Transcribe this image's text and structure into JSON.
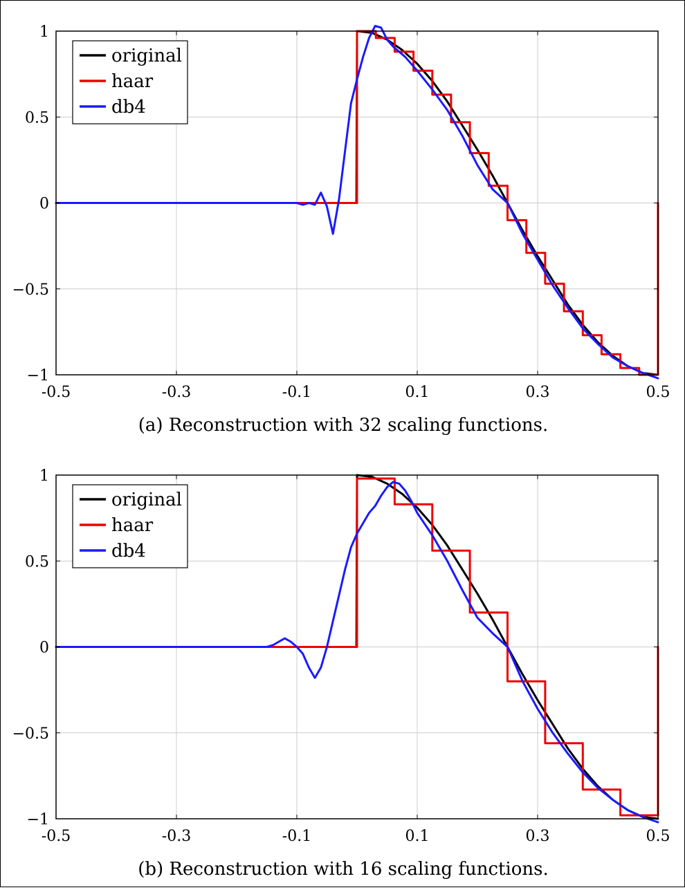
{
  "colors": {
    "original": "#000000",
    "haar": "#ee0000",
    "db4": "#1a1aff",
    "grid": "#cccccc"
  },
  "chart_data": [
    {
      "type": "line",
      "caption": "(a) Reconstruction with 32 scaling functions.",
      "xlim": [
        -0.5,
        0.5
      ],
      "ylim": [
        -1,
        1
      ],
      "grid": true,
      "legend_position": "top-left",
      "x_ticks": [
        -0.5,
        -0.3,
        -0.1,
        0.1,
        0.3,
        0.5
      ],
      "x_tick_labels": [
        "-0.5",
        "-0.3",
        "-0.1",
        "0.1",
        "0.3",
        "0.5"
      ],
      "y_ticks": [
        -1,
        -0.5,
        0,
        0.5,
        1
      ],
      "y_tick_labels": [
        "−1",
        "−0.5",
        "0",
        "0.5",
        "1"
      ],
      "series": [
        {
          "name": "original",
          "x": [
            -0.5,
            -0.4,
            -0.3,
            -0.2,
            -0.1,
            -0.001,
            0.0,
            0.025,
            0.05,
            0.075,
            0.1,
            0.125,
            0.15,
            0.175,
            0.2,
            0.225,
            0.25,
            0.275,
            0.3,
            0.325,
            0.35,
            0.375,
            0.4,
            0.425,
            0.45,
            0.475,
            0.5
          ],
          "y": [
            0,
            0,
            0,
            0,
            0,
            0,
            1.0,
            0.99,
            0.95,
            0.89,
            0.81,
            0.71,
            0.59,
            0.45,
            0.31,
            0.16,
            0.0,
            -0.16,
            -0.31,
            -0.45,
            -0.59,
            -0.71,
            -0.81,
            -0.89,
            -0.95,
            -0.99,
            -1.0
          ]
        },
        {
          "name": "haar",
          "x": [
            -0.5,
            -0.1,
            -0.1,
            0.0,
            0.0,
            0.03125,
            0.03125,
            0.0625,
            0.0625,
            0.09375,
            0.09375,
            0.125,
            0.125,
            0.15625,
            0.15625,
            0.1875,
            0.1875,
            0.21875,
            0.21875,
            0.25,
            0.25,
            0.28125,
            0.28125,
            0.3125,
            0.3125,
            0.34375,
            0.34375,
            0.375,
            0.375,
            0.40625,
            0.40625,
            0.4375,
            0.4375,
            0.46875,
            0.46875,
            0.5,
            0.5
          ],
          "y": [
            0,
            0,
            0,
            0,
            1.0,
            1.0,
            0.96,
            0.96,
            0.88,
            0.88,
            0.77,
            0.77,
            0.63,
            0.63,
            0.47,
            0.47,
            0.29,
            0.29,
            0.1,
            0.1,
            -0.1,
            -0.1,
            -0.29,
            -0.29,
            -0.47,
            -0.47,
            -0.63,
            -0.63,
            -0.77,
            -0.77,
            -0.88,
            -0.88,
            -0.96,
            -0.96,
            -1.0,
            -1.0,
            0
          ]
        },
        {
          "name": "db4",
          "x": [
            -0.5,
            -0.3,
            -0.1,
            -0.09,
            -0.08,
            -0.07,
            -0.06,
            -0.05,
            -0.04,
            -0.03,
            -0.02,
            -0.01,
            0.0,
            0.01,
            0.02,
            0.03,
            0.04,
            0.05,
            0.06,
            0.08,
            0.1,
            0.125,
            0.15,
            0.175,
            0.2,
            0.225,
            0.25,
            0.275,
            0.3,
            0.325,
            0.35,
            0.375,
            0.4,
            0.425,
            0.45,
            0.475,
            0.5
          ],
          "y": [
            0,
            0,
            0,
            -0.01,
            0.0,
            -0.01,
            0.06,
            -0.02,
            -0.18,
            0.02,
            0.3,
            0.58,
            0.72,
            0.85,
            0.96,
            1.03,
            1.02,
            0.95,
            0.91,
            0.85,
            0.77,
            0.66,
            0.54,
            0.39,
            0.22,
            0.08,
            0.0,
            -0.18,
            -0.33,
            -0.48,
            -0.61,
            -0.73,
            -0.82,
            -0.9,
            -0.95,
            -0.99,
            -1.02
          ]
        }
      ]
    },
    {
      "type": "line",
      "caption": "(b) Reconstruction with 16 scaling functions.",
      "xlim": [
        -0.5,
        0.5
      ],
      "ylim": [
        -1,
        1
      ],
      "grid": true,
      "legend_position": "top-left",
      "x_ticks": [
        -0.5,
        -0.3,
        -0.1,
        0.1,
        0.3,
        0.5
      ],
      "x_tick_labels": [
        "-0.5",
        "-0.3",
        "-0.1",
        "0.1",
        "0.3",
        "0.5"
      ],
      "y_ticks": [
        -1,
        -0.5,
        0,
        0.5,
        1
      ],
      "y_tick_labels": [
        "−1",
        "−0.5",
        "0",
        "0.5",
        "1"
      ],
      "series": [
        {
          "name": "original",
          "x": [
            -0.5,
            -0.4,
            -0.3,
            -0.2,
            -0.1,
            -0.001,
            0.0,
            0.025,
            0.05,
            0.075,
            0.1,
            0.125,
            0.15,
            0.175,
            0.2,
            0.225,
            0.25,
            0.275,
            0.3,
            0.325,
            0.35,
            0.375,
            0.4,
            0.425,
            0.45,
            0.475,
            0.5
          ],
          "y": [
            0,
            0,
            0,
            0,
            0,
            0,
            1.0,
            0.99,
            0.95,
            0.89,
            0.81,
            0.71,
            0.59,
            0.45,
            0.31,
            0.16,
            0.0,
            -0.16,
            -0.31,
            -0.45,
            -0.59,
            -0.71,
            -0.81,
            -0.89,
            -0.95,
            -0.99,
            -1.0
          ]
        },
        {
          "name": "haar",
          "x": [
            -0.5,
            -0.1,
            -0.1,
            0.0,
            0.0,
            0.0625,
            0.0625,
            0.125,
            0.125,
            0.1875,
            0.1875,
            0.25,
            0.25,
            0.3125,
            0.3125,
            0.375,
            0.375,
            0.4375,
            0.4375,
            0.5,
            0.5
          ],
          "y": [
            0,
            0,
            0,
            0,
            0.98,
            0.98,
            0.83,
            0.83,
            0.56,
            0.56,
            0.2,
            0.2,
            -0.2,
            -0.2,
            -0.56,
            -0.56,
            -0.83,
            -0.83,
            -0.98,
            -0.98,
            0
          ]
        },
        {
          "name": "db4",
          "x": [
            -0.5,
            -0.3,
            -0.2,
            -0.15,
            -0.14,
            -0.13,
            -0.12,
            -0.11,
            -0.1,
            -0.09,
            -0.08,
            -0.07,
            -0.06,
            -0.05,
            -0.04,
            -0.03,
            -0.02,
            -0.01,
            0.0,
            0.01,
            0.02,
            0.03,
            0.04,
            0.05,
            0.06,
            0.07,
            0.08,
            0.09,
            0.1,
            0.125,
            0.15,
            0.175,
            0.2,
            0.225,
            0.25,
            0.275,
            0.3,
            0.325,
            0.35,
            0.375,
            0.4,
            0.425,
            0.45,
            0.475,
            0.5
          ],
          "y": [
            0,
            0,
            0,
            0,
            0.01,
            0.03,
            0.05,
            0.03,
            0.0,
            -0.04,
            -0.12,
            -0.18,
            -0.12,
            0.0,
            0.15,
            0.3,
            0.45,
            0.58,
            0.66,
            0.72,
            0.78,
            0.82,
            0.88,
            0.93,
            0.96,
            0.95,
            0.91,
            0.85,
            0.78,
            0.65,
            0.5,
            0.33,
            0.17,
            0.08,
            0.0,
            -0.2,
            -0.36,
            -0.5,
            -0.62,
            -0.73,
            -0.82,
            -0.89,
            -0.95,
            -0.99,
            -1.02
          ]
        }
      ]
    }
  ]
}
